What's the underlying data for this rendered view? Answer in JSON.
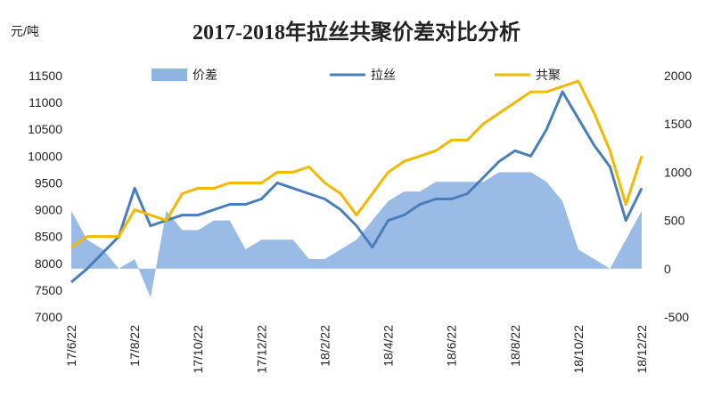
{
  "chart_data": {
    "type": "combo",
    "title": "2017-2018年拉丝共聚价差对比分析",
    "y_unit": "元/吨",
    "categories": [
      "17/6/22",
      null,
      null,
      null,
      "17/8/22",
      null,
      null,
      null,
      "17/10/22",
      null,
      null,
      null,
      "17/12/22",
      null,
      null,
      null,
      "18/2/22",
      null,
      null,
      null,
      "18/4/22",
      null,
      null,
      null,
      "18/6/22",
      null,
      null,
      null,
      "18/8/22",
      null,
      null,
      null,
      "18/10/22",
      null,
      null,
      null,
      "18/12/22"
    ],
    "ylim": [
      7000,
      11500
    ],
    "yticks": [
      7000,
      7500,
      8000,
      8500,
      9000,
      9500,
      10000,
      10500,
      11000,
      11500
    ],
    "y2lim": [
      -500,
      2000
    ],
    "y2ticks": [
      -500,
      0,
      500,
      1000,
      1500,
      2000
    ],
    "series": [
      {
        "name": "价差",
        "type": "area",
        "axis": "y2",
        "color": "#8eb4e3",
        "values": [
          600,
          300,
          200,
          0,
          100,
          -300,
          600,
          400,
          400,
          500,
          500,
          200,
          300,
          300,
          300,
          100,
          100,
          200,
          300,
          500,
          700,
          800,
          800,
          900,
          900,
          900,
          900,
          1000,
          1000,
          1000,
          900,
          700,
          200,
          100,
          0,
          300,
          600
        ]
      },
      {
        "name": "拉丝",
        "type": "line",
        "color": "#4a7ebb",
        "values": [
          7650,
          7900,
          8200,
          8500,
          9400,
          8700,
          8800,
          8900,
          8900,
          9000,
          9100,
          9100,
          9200,
          9500,
          9400,
          9300,
          9200,
          9000,
          8700,
          8300,
          8800,
          8900,
          9100,
          9200,
          9200,
          9300,
          9600,
          9900,
          10100,
          10000,
          10500,
          11200,
          10700,
          10200,
          9800,
          8800,
          9400
        ]
      },
      {
        "name": "共聚",
        "type": "line",
        "color": "#f5b800",
        "values": [
          8300,
          8500,
          8500,
          8500,
          9000,
          8900,
          8800,
          9300,
          9400,
          9400,
          9500,
          9500,
          9500,
          9700,
          9700,
          9800,
          9500,
          9300,
          8900,
          9300,
          9700,
          9900,
          10000,
          10100,
          10300,
          10300,
          10600,
          10800,
          11000,
          11200,
          11200,
          11300,
          11400,
          10800,
          10100,
          9100,
          10000
        ]
      }
    ]
  }
}
